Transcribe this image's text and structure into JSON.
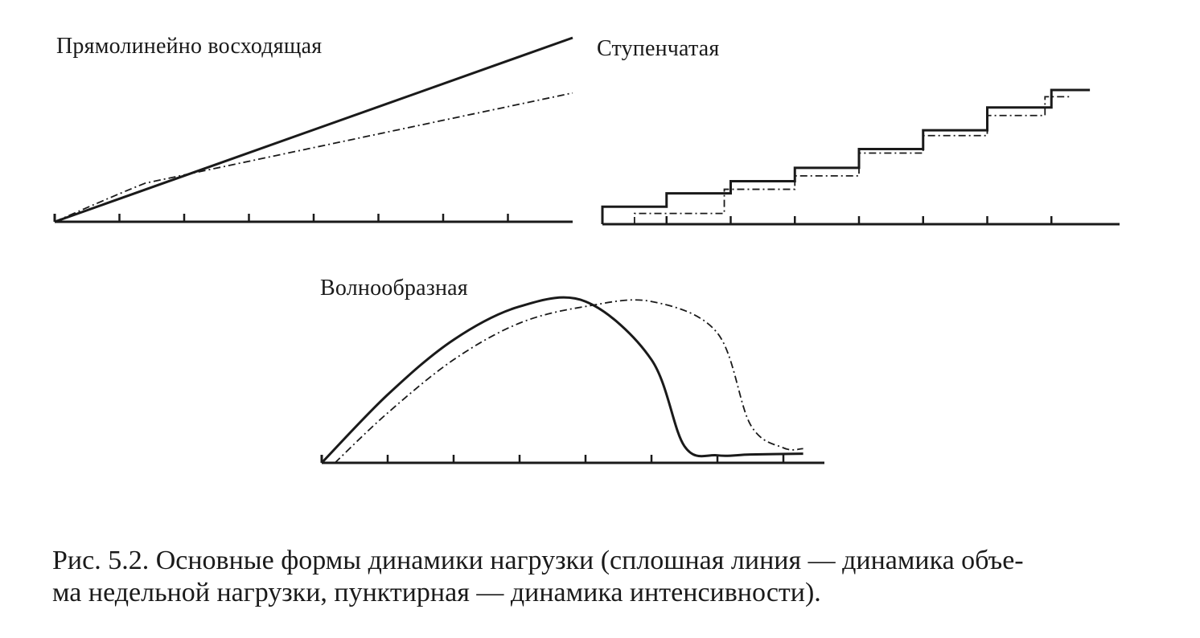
{
  "figure": {
    "caption_lines": [
      "Рис. 5.2. Основные формы динамики нагрузки (сплошная линия — динамика объе-",
      "ма недельной нагрузки, пунктирная — динамика интенсивности)."
    ]
  },
  "colors": {
    "ink": "#1a1a1a",
    "background": "#ffffff"
  },
  "chart_data": [
    {
      "type": "line",
      "title": "Прямолинейно восходящая",
      "xlim": [
        0,
        8
      ],
      "ylim": [
        0,
        10
      ],
      "grid": false,
      "x_ticks": [
        1,
        2,
        3,
        4,
        5,
        6,
        7
      ],
      "series": [
        {
          "style": "solid",
          "x": [
            0,
            8
          ],
          "y": [
            0,
            10
          ]
        },
        {
          "style": "dash-dot",
          "x": [
            0,
            1,
            8
          ],
          "y": [
            0,
            1.55,
            7
          ]
        }
      ]
    },
    {
      "type": "line",
      "title": "Ступенчатая",
      "xlim": [
        0,
        8
      ],
      "ylim": [
        0,
        10
      ],
      "grid": false,
      "x_ticks": [
        1,
        2,
        3,
        4,
        5,
        6,
        7
      ],
      "series": [
        {
          "style": "solid",
          "shape": "step",
          "x": [
            0,
            1,
            2,
            3,
            4,
            5,
            6,
            7,
            7.6
          ],
          "y": [
            1.3,
            2.3,
            3.2,
            4.2,
            5.6,
            7.0,
            8.7,
            10.0,
            10.0
          ]
        },
        {
          "style": "dash-dot",
          "shape": "step",
          "x": [
            0.5,
            1.9,
            3.0,
            4.0,
            5.0,
            6.0,
            6.9,
            7.3
          ],
          "y": [
            0.8,
            2.6,
            3.6,
            5.3,
            6.6,
            8.1,
            9.5,
            9.5
          ]
        }
      ]
    },
    {
      "type": "line",
      "title": "Волнообразная",
      "xlim": [
        0,
        7.5
      ],
      "ylim": [
        0,
        10
      ],
      "grid": false,
      "x_ticks": [
        1,
        2,
        3,
        4,
        5,
        6,
        7
      ],
      "series": [
        {
          "style": "solid",
          "x": [
            0,
            1,
            2,
            3,
            4,
            5,
            5.5,
            6,
            6.5,
            7.3
          ],
          "y": [
            0,
            4.1,
            7.4,
            9.4,
            9.7,
            6.2,
            1.0,
            0.45,
            0.5,
            0.55
          ]
        },
        {
          "style": "dash-dot",
          "x": [
            0.2,
            1,
            2,
            3,
            4,
            5,
            6,
            6.5,
            7.0,
            7.3
          ],
          "y": [
            0,
            3.0,
            6.2,
            8.4,
            9.4,
            9.7,
            7.8,
            2.3,
            0.9,
            0.85
          ]
        }
      ]
    }
  ]
}
